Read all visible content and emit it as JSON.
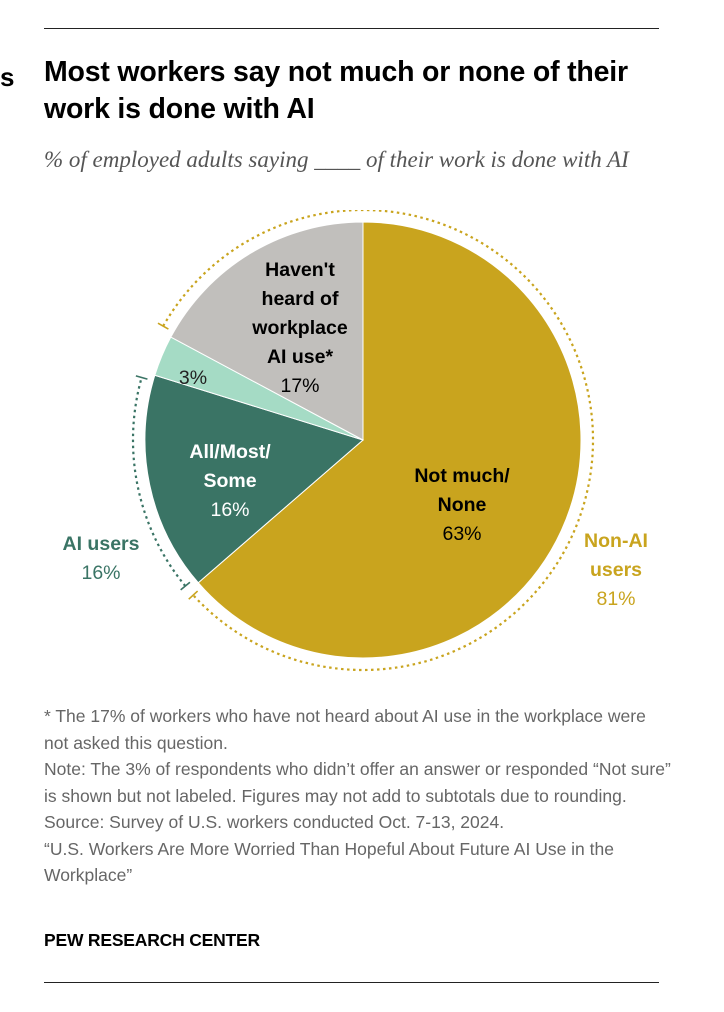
{
  "header": {
    "title": "Most workers say not much or none of their work is done with AI",
    "subtitle": "% of employed adults saying ____ of their work is done with AI",
    "stray_mark": "s"
  },
  "chart_data": {
    "type": "pie",
    "title": "Most workers say not much or none of their work is done with AI",
    "subtitle": "% of employed adults saying ____ of their work is done with AI",
    "slices": [
      {
        "label_lines": [
          "Not much/",
          "None"
        ],
        "value": 63,
        "value_text": "63%",
        "color": "#C9A41E",
        "label_color": "#000000"
      },
      {
        "label_lines": [
          "All/Most/",
          "Some"
        ],
        "value": 16,
        "value_text": "16%",
        "color": "#3A7465",
        "label_color": "#FFFFFF"
      },
      {
        "label_lines": [],
        "value": 3,
        "value_text": "3%",
        "color": "#A5DBC5",
        "label_color": "#222222"
      },
      {
        "label_lines": [
          "Haven't",
          "heard of",
          "workplace",
          "AI use*"
        ],
        "value": 17,
        "value_text": "17%",
        "color": "#C1BFBC",
        "label_color": "#000000"
      }
    ],
    "groups": [
      {
        "label_lines": [
          "Non-AI",
          "users"
        ],
        "value": 81,
        "value_text": "81%",
        "color": "#C9A41E",
        "slices": [
          0
        ]
      },
      {
        "label_lines": [
          "AI users"
        ],
        "value": 16,
        "value_text": "16%",
        "color": "#3A7465",
        "slices": [
          1
        ]
      }
    ]
  },
  "notes": {
    "footnote": "* The 17% of workers who have not heard about AI use in the workplace were not asked this question.",
    "note": "Note: The 3% of respondents who didn’t offer an answer or responded “Not sure” is shown but not labeled. Figures may not add to subtotals due to rounding.",
    "source": "Source: Survey of U.S. workers conducted Oct. 7-13, 2024.",
    "report": "“U.S. Workers Are More Worried Than Hopeful About Future AI Use in the Workplace”"
  },
  "credit": "PEW RESEARCH CENTER"
}
